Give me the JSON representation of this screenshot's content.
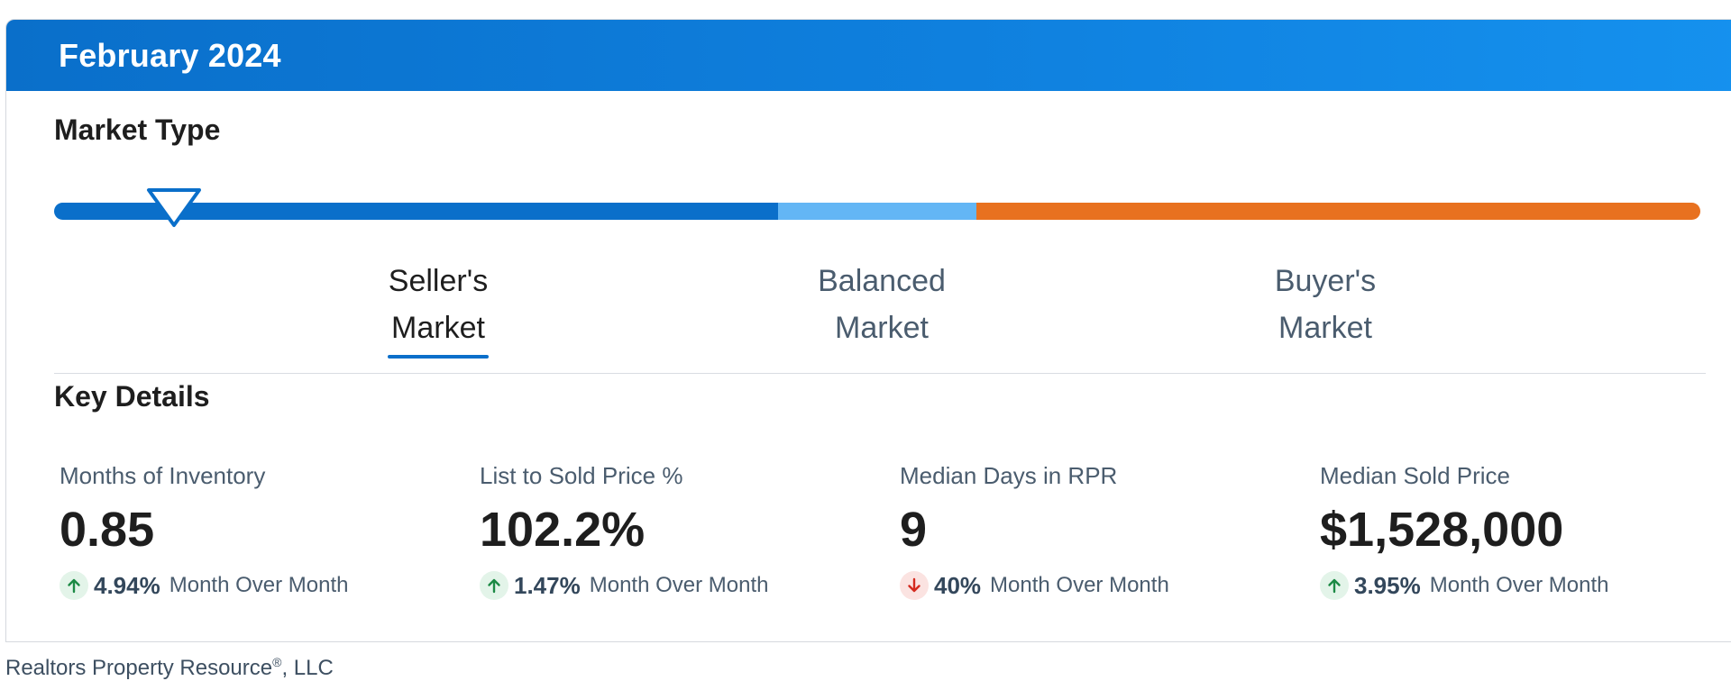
{
  "header": {
    "title": "February 2024"
  },
  "market_type": {
    "title": "Market Type",
    "indicator_level": 0.073,
    "segments": [
      {
        "id": "seller",
        "color": "#0a6fca",
        "start": 0.0,
        "end": 0.44
      },
      {
        "id": "balanced",
        "color": "#63b6f5",
        "start": 0.44,
        "end": 0.56
      },
      {
        "id": "buyer",
        "color": "#e8711f",
        "start": 0.56,
        "end": 1.0
      }
    ],
    "labels": [
      {
        "line1": "Seller's",
        "line2": "Market",
        "active": true
      },
      {
        "line1": "Balanced",
        "line2": "Market",
        "active": false
      },
      {
        "line1": "Buyer's",
        "line2": "Market",
        "active": false
      }
    ],
    "marker_color": "#0a6fca"
  },
  "key_details": {
    "title": "Key Details",
    "stats": [
      {
        "label": "Months of Inventory",
        "value": "0.85",
        "change": "4.94%",
        "direction": "up",
        "change_label": "Month Over Month"
      },
      {
        "label": "List to Sold Price %",
        "value": "102.2%",
        "change": "1.47%",
        "direction": "up",
        "change_label": "Month Over Month"
      },
      {
        "label": "Median Days in RPR",
        "value": "9",
        "change": "40%",
        "direction": "down",
        "change_label": "Month Over Month"
      },
      {
        "label": "Median Sold Price",
        "value": "$1,528,000",
        "change": "3.95%",
        "direction": "up",
        "change_label": "Month Over Month"
      }
    ],
    "colors": {
      "up": "#1c8a45",
      "up_bg": "#e3f4e9",
      "down": "#d42a1f",
      "down_bg": "#fbe3e1"
    }
  },
  "footer": {
    "text": "Realtors Property Resource",
    "registered": "®",
    "suffix": ", LLC"
  }
}
